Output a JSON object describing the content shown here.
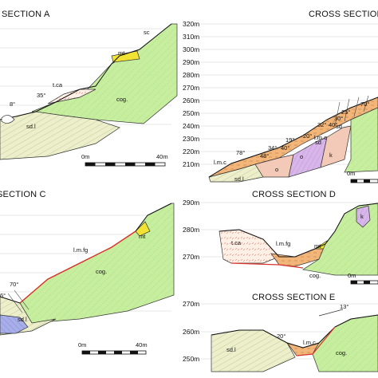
{
  "panels": {
    "A": {
      "title": "SECTION A",
      "labels": [
        "sc",
        "mt",
        "t.ca",
        "cog.",
        "sd.l"
      ],
      "dips": [
        "35°",
        "8°"
      ],
      "scale": [
        "0m",
        "40m"
      ]
    },
    "B": {
      "title": "CROSS SECTION",
      "elevations": [
        "320m",
        "310m",
        "300m",
        "290m",
        "280m",
        "270m",
        "260m",
        "250m",
        "240m",
        "230m",
        "220m",
        "210m"
      ],
      "labels": [
        "l.m.c",
        "sd.l",
        "o",
        "o",
        "k",
        "sd",
        "sd",
        "l.m.c"
      ],
      "dips": [
        "78°",
        "48°",
        "34°",
        "40°",
        "19°",
        "20°",
        "32°",
        "40°",
        "30°",
        "25°",
        "70°"
      ],
      "scale": [
        "0m"
      ]
    },
    "C": {
      "title": "SECTION C",
      "labels": [
        "mt",
        "l.m.fg",
        "cog.",
        "sd.l"
      ],
      "dips": [
        "70°",
        "6°"
      ],
      "scale": [
        "0m",
        "40m"
      ]
    },
    "D": {
      "title": "CROSS SECTION D",
      "elevations": [
        "290m",
        "280m",
        "270m"
      ],
      "labels": [
        "t.ca",
        "l.m.fg",
        "mt",
        "k",
        "cog."
      ],
      "scale": [
        "0m"
      ]
    },
    "E": {
      "title": "CROSS SECTION E",
      "elevations": [
        "270m",
        "260m",
        "250m"
      ],
      "labels": [
        "sd.l",
        "l.m.c",
        "cog."
      ],
      "dips": [
        "13°",
        "20°"
      ]
    }
  },
  "colors": {
    "conglomerate": "#c6ee9e",
    "sand_lime": "#ecefc9",
    "travertine": "#fff0e6",
    "marl": "#f2b57a",
    "yellow": "#f1e233",
    "orange_pink": "#f3c9b7",
    "purple": "#d8b6ea",
    "blue": "#a7aee8",
    "red": "#d9342b"
  }
}
